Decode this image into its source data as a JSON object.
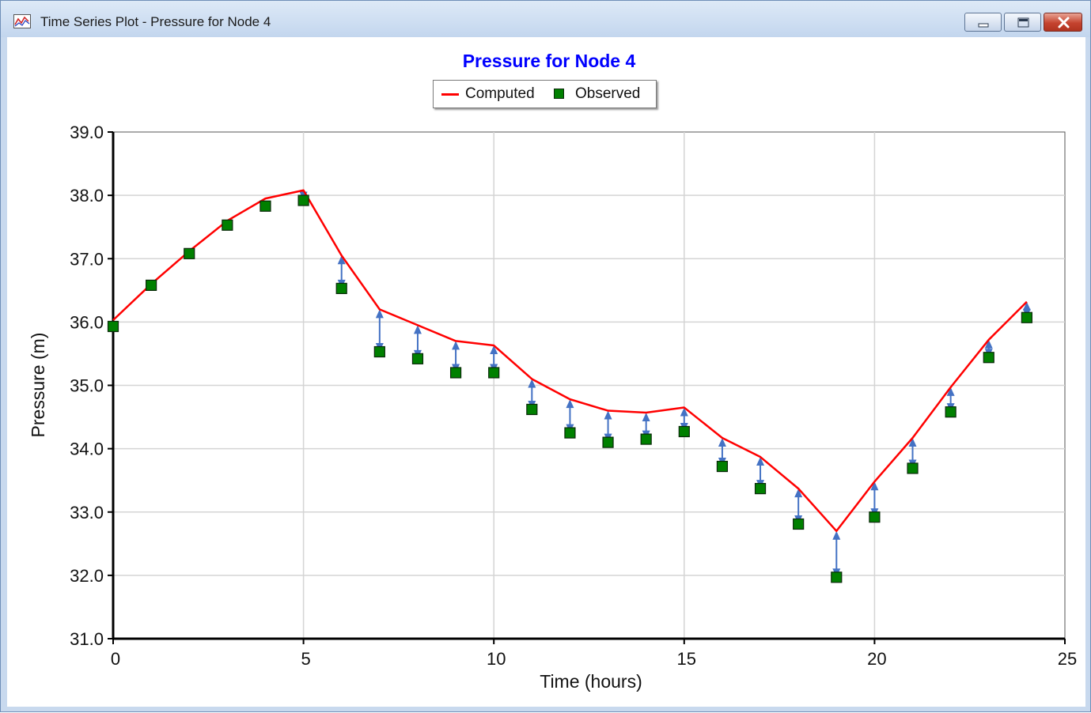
{
  "window": {
    "title": "Time Series Plot - Pressure for Node 4",
    "icon": "chart-icon",
    "controls": [
      "minimize-icon",
      "maximize-icon",
      "close-icon"
    ]
  },
  "colors": {
    "computed": "#ff0000",
    "observed": "#008000",
    "error_arrow": "#4472c4",
    "title": "#0000ff"
  },
  "legend": {
    "computed_label": "Computed",
    "observed_label": "Observed"
  },
  "chart_data": {
    "type": "line",
    "title": "Pressure for Node 4",
    "xlabel": "Time (hours)",
    "ylabel": "Pressure (m)",
    "xlim": [
      0,
      25
    ],
    "ylim": [
      31,
      39
    ],
    "xticks": [
      "0",
      "5",
      "10",
      "15",
      "20",
      "25"
    ],
    "yticks": [
      "31.0",
      "32.0",
      "33.0",
      "34.0",
      "35.0",
      "36.0",
      "37.0",
      "38.0",
      "39.0"
    ],
    "grid": true,
    "legend_position": "top-center",
    "series": [
      {
        "name": "Computed",
        "style": "line",
        "x": [
          0,
          1,
          2,
          3,
          4,
          5,
          6,
          7,
          8,
          9,
          10,
          11,
          12,
          13,
          14,
          15,
          16,
          17,
          18,
          19,
          20,
          21,
          22,
          23,
          24
        ],
        "y": [
          36.03,
          36.6,
          37.12,
          37.6,
          37.95,
          38.08,
          37.05,
          36.2,
          35.95,
          35.7,
          35.63,
          35.1,
          34.78,
          34.6,
          34.57,
          34.65,
          34.17,
          33.87,
          33.37,
          32.7,
          33.48,
          34.17,
          34.97,
          35.72,
          36.32
        ]
      },
      {
        "name": "Observed",
        "style": "marker",
        "x": [
          0,
          1,
          2,
          3,
          4,
          5,
          6,
          7,
          8,
          9,
          10,
          11,
          12,
          13,
          14,
          15,
          16,
          17,
          18,
          19,
          20,
          21,
          22,
          23,
          24
        ],
        "y": [
          35.93,
          36.58,
          37.08,
          37.53,
          37.83,
          37.92,
          36.53,
          35.53,
          35.42,
          35.2,
          35.2,
          34.62,
          34.25,
          34.1,
          34.15,
          34.27,
          33.72,
          33.37,
          32.81,
          31.97,
          32.92,
          33.69,
          34.58,
          35.44,
          36.07
        ]
      }
    ]
  }
}
